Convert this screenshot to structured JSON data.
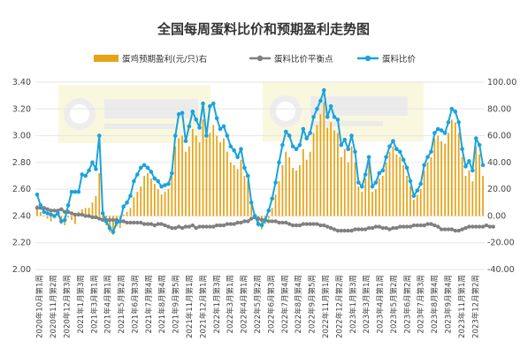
{
  "chart_data": {
    "type": "bar+line",
    "title": "全国每周蛋料比价和预期盈利走势图",
    "legend_position": "top",
    "left_axis": {
      "ylim": [
        2.0,
        3.4
      ],
      "ticks": [
        "2.00",
        "2.20",
        "2.40",
        "2.60",
        "2.80",
        "3.00",
        "3.20",
        "3.40"
      ]
    },
    "right_axis": {
      "ylim": [
        -40,
        100
      ],
      "ticks": [
        "-40.00",
        "-20.00",
        "0.00",
        "20.00",
        "40.00",
        "60.00",
        "80.00",
        "100.00"
      ]
    },
    "x_tick_labels": [
      "2020年10月第1周",
      "2020年11月第2周",
      "2020年12月第3周",
      "2021年1月第3周",
      "2021年3月第1周",
      "2021年4月第1周",
      "2021年5月第2周",
      "2021年6月第3周",
      "2021年7月第4周",
      "2021年8月第4周",
      "2021年9月第5周",
      "2021年11月第1周",
      "2021年12月第1周",
      "2022年1月第3周",
      "2022年3月第1周",
      "2022年4月第1周",
      "2022年5月第2周",
      "2022年6月第3周",
      "2022年7月第4周",
      "2022年8月第4周",
      "2022年9月第5周",
      "2022年11月第1周",
      "2022年12月第2周",
      "2023年1月第3周",
      "2023年3月第1周",
      "2023年4月第1周",
      "2023年5月第2周",
      "2023年6月第2周",
      "2023年7月第3周",
      "2023年8月第4周",
      "2023年9月第4周",
      "2023年11月第1周",
      "2023年12月第2周"
    ],
    "series": [
      {
        "name": "蛋鸡预期盈利(元/只)右",
        "kind": "bar",
        "axis": "right",
        "color": "#E8A317",
        "values": [
          8,
          3,
          0,
          -2,
          -4,
          -2,
          2,
          -6,
          -7,
          -1,
          -3,
          -6,
          3,
          5,
          6,
          6,
          10,
          15,
          32,
          -4,
          -7,
          -12,
          -14,
          -8,
          -9,
          1,
          3,
          6,
          14,
          18,
          22,
          30,
          32,
          28,
          24,
          20,
          16,
          18,
          20,
          30,
          52,
          58,
          60,
          48,
          52,
          65,
          60,
          55,
          72,
          58,
          62,
          68,
          60,
          55,
          58,
          48,
          40,
          38,
          35,
          42,
          30,
          26,
          10,
          0,
          -8,
          -10,
          -6,
          -2,
          6,
          16,
          26,
          38,
          48,
          44,
          36,
          34,
          38,
          50,
          42,
          48,
          62,
          68,
          76,
          85,
          66,
          70,
          64,
          62,
          44,
          50,
          40,
          52,
          40,
          22,
          18,
          28,
          40,
          18,
          20,
          28,
          30,
          40,
          48,
          52,
          46,
          44,
          38,
          30,
          22,
          12,
          16,
          20,
          34,
          40,
          44,
          58,
          60,
          56,
          54,
          62,
          72,
          70,
          62,
          44,
          30,
          34,
          26,
          52,
          46,
          30
        ]
      },
      {
        "name": "蛋料比价平衡点",
        "kind": "line",
        "axis": "left",
        "color": "#808080",
        "values": [
          2.46,
          2.46,
          2.46,
          2.45,
          2.44,
          2.44,
          2.44,
          2.45,
          2.43,
          2.43,
          2.42,
          2.41,
          2.41,
          2.41,
          2.4,
          2.4,
          2.39,
          2.39,
          2.38,
          2.37,
          2.37,
          2.37,
          2.37,
          2.37,
          2.36,
          2.36,
          2.35,
          2.35,
          2.35,
          2.35,
          2.35,
          2.34,
          2.34,
          2.34,
          2.33,
          2.34,
          2.34,
          2.33,
          2.32,
          2.31,
          2.31,
          2.32,
          2.31,
          2.32,
          2.32,
          2.33,
          2.31,
          2.32,
          2.32,
          2.32,
          2.32,
          2.32,
          2.33,
          2.33,
          2.33,
          2.34,
          2.34,
          2.34,
          2.35,
          2.35,
          2.36,
          2.36,
          2.38,
          2.39,
          2.38,
          2.37,
          2.37,
          2.36,
          2.36,
          2.36,
          2.35,
          2.35,
          2.35,
          2.34,
          2.33,
          2.33,
          2.33,
          2.34,
          2.34,
          2.34,
          2.34,
          2.34,
          2.33,
          2.33,
          2.32,
          2.31,
          2.3,
          2.29,
          2.29,
          2.29,
          2.29,
          2.29,
          2.3,
          2.3,
          2.3,
          2.3,
          2.31,
          2.31,
          2.32,
          2.32,
          2.31,
          2.31,
          2.3,
          2.31,
          2.31,
          2.32,
          2.32,
          2.32,
          2.32,
          2.33,
          2.33,
          2.33,
          2.33,
          2.34,
          2.34,
          2.33,
          2.32,
          2.3,
          2.3,
          2.3,
          2.3,
          2.29,
          2.29,
          2.3,
          2.31,
          2.32,
          2.32,
          2.32,
          2.32,
          2.32,
          2.33,
          2.32,
          2.32
        ]
      },
      {
        "name": "蛋料比价",
        "kind": "line",
        "axis": "left",
        "color": "#1AA3DD",
        "values": [
          2.56,
          2.48,
          2.43,
          2.42,
          2.41,
          2.4,
          2.42,
          2.36,
          2.37,
          2.48,
          2.58,
          2.58,
          2.58,
          2.71,
          2.7,
          2.74,
          2.8,
          2.75,
          3.0,
          2.42,
          2.36,
          2.31,
          2.28,
          2.35,
          2.36,
          2.47,
          2.5,
          2.55,
          2.66,
          2.71,
          2.76,
          2.78,
          2.76,
          2.73,
          2.68,
          2.66,
          2.62,
          2.63,
          2.64,
          2.72,
          3.0,
          3.16,
          3.17,
          2.96,
          3.07,
          3.18,
          3.12,
          3.06,
          3.24,
          3.0,
          3.22,
          3.24,
          3.13,
          3.05,
          3.07,
          3.0,
          2.92,
          2.89,
          2.84,
          2.9,
          2.76,
          2.7,
          2.5,
          2.4,
          2.34,
          2.33,
          2.37,
          2.44,
          2.53,
          2.65,
          2.8,
          2.93,
          3.03,
          3.0,
          2.92,
          2.9,
          2.93,
          3.05,
          2.98,
          3.02,
          3.14,
          3.2,
          3.26,
          3.34,
          3.14,
          3.22,
          3.14,
          3.12,
          2.93,
          2.97,
          2.9,
          3.0,
          2.88,
          2.65,
          2.62,
          2.71,
          2.84,
          2.62,
          2.65,
          2.72,
          2.74,
          2.84,
          2.92,
          2.96,
          2.9,
          2.88,
          2.82,
          2.76,
          2.66,
          2.55,
          2.59,
          2.64,
          2.78,
          2.84,
          2.88,
          3.02,
          3.05,
          3.04,
          3.02,
          3.1,
          3.2,
          3.18,
          3.1,
          2.9,
          2.77,
          2.81,
          2.74,
          2.98,
          2.93,
          2.78
        ]
      }
    ]
  }
}
